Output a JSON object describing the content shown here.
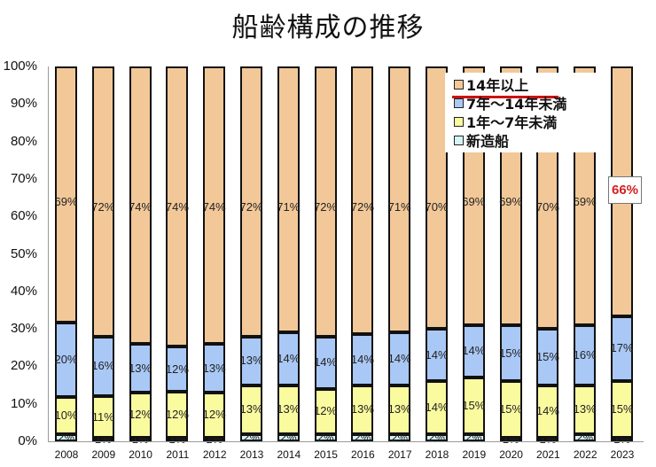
{
  "title": "船齢構成の推移",
  "colors": {
    "over14": "#f2c898",
    "y7to14": "#a9c8f5",
    "y1to7": "#fafa9e",
    "new": "#d4f4f6",
    "highlight_red": "#d42020",
    "underline_red": "#cc1111"
  },
  "legend": {
    "items": [
      {
        "key": "over14",
        "label": "14年以上"
      },
      {
        "key": "y7to14",
        "label": "7年～14年未満"
      },
      {
        "key": "y1to7",
        "label": "1年～7年未満"
      },
      {
        "key": "new",
        "label": "新造船"
      }
    ]
  },
  "callout": {
    "label": "66%",
    "year": "2023"
  },
  "chart_data": {
    "type": "bar",
    "stacked": true,
    "percent": true,
    "title": "船齢構成の推移",
    "xlabel": "",
    "ylabel": "",
    "ylim": [
      0,
      100
    ],
    "yticks": [
      "0%",
      "10%",
      "20%",
      "30%",
      "40%",
      "50%",
      "60%",
      "70%",
      "80%",
      "90%",
      "100%"
    ],
    "categories": [
      "2008",
      "2009",
      "2010",
      "2011",
      "2012",
      "2013",
      "2014",
      "2015",
      "2016",
      "2017",
      "2018",
      "2019",
      "2020",
      "2021",
      "2022",
      "2023"
    ],
    "series": [
      {
        "name": "新造船",
        "key": "new",
        "values": [
          2,
          1,
          1,
          1,
          1,
          2,
          2,
          2,
          2,
          2,
          2,
          2,
          1,
          1,
          2,
          1
        ]
      },
      {
        "name": "1年～7年未満",
        "key": "y1to7",
        "values": [
          10,
          11,
          12,
          12,
          12,
          13,
          13,
          12,
          13,
          13,
          14,
          15,
          15,
          14,
          13,
          15
        ]
      },
      {
        "name": "7年～14年未満",
        "key": "y7to14",
        "values": [
          20,
          16,
          13,
          12,
          13,
          13,
          14,
          14,
          14,
          14,
          14,
          14,
          15,
          15,
          16,
          17
        ]
      },
      {
        "name": "14年以上",
        "key": "over14",
        "values": [
          69,
          72,
          74,
          74,
          74,
          72,
          71,
          72,
          72,
          71,
          70,
          69,
          69,
          70,
          69,
          66
        ]
      }
    ],
    "legend_position": "upper-right-inside",
    "grid": false,
    "annotations": [
      {
        "text": "66%",
        "target": "2023 / 14年以上",
        "style": "red boxed callout"
      }
    ]
  }
}
